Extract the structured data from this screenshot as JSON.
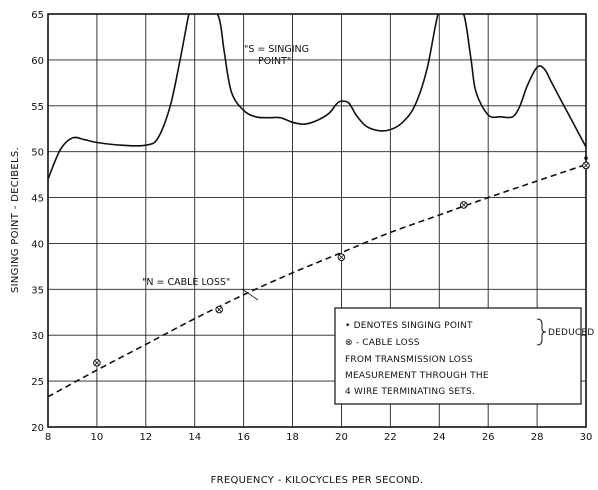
{
  "chart_data": {
    "type": "line",
    "title": "",
    "xlabel": "FREQUENCY - KILOCYCLES PER SECOND.",
    "ylabel": "SINGING POINT - DECIBELS.",
    "xlim": [
      8,
      30
    ],
    "ylim": [
      20,
      65
    ],
    "x_ticks": [
      8,
      10,
      12,
      14,
      16,
      18,
      20,
      22,
      24,
      26,
      28,
      30
    ],
    "y_ticks": [
      20,
      25,
      30,
      35,
      40,
      45,
      50,
      55,
      60,
      65
    ],
    "x_tick_labels": [
      "8",
      "10",
      "12",
      "14",
      "16",
      "18",
      "20",
      "22",
      "24",
      "26",
      "28",
      "30"
    ],
    "y_tick_labels": [
      "20",
      "25",
      "30",
      "35",
      "40",
      "45",
      "50",
      "55",
      "60",
      "65"
    ],
    "grid": true,
    "series": [
      {
        "name": "\"S = SINGING POINT\"",
        "style": "solid",
        "x": [
          8.0,
          8.5,
          9.0,
          9.5,
          10.0,
          11.0,
          12.0,
          12.5,
          13.0,
          13.4,
          13.8,
          14.0,
          14.5,
          15.0,
          15.2,
          15.5,
          16.0,
          16.5,
          17.0,
          17.5,
          18.0,
          18.5,
          19.0,
          19.5,
          19.8,
          20.0,
          20.3,
          20.6,
          21.0,
          21.5,
          22.0,
          22.5,
          23.0,
          23.5,
          24.0,
          24.5,
          25.0,
          25.3,
          25.5,
          26.0,
          26.5,
          27.0,
          27.3,
          27.6,
          28.0,
          28.3,
          28.6,
          29.0,
          29.5,
          30.0
        ],
        "y": [
          47.0,
          50.2,
          51.5,
          51.3,
          51.0,
          50.7,
          50.7,
          51.5,
          55.0,
          60.0,
          65.5,
          67.0,
          67.0,
          64.5,
          61.0,
          56.5,
          54.5,
          53.8,
          53.7,
          53.7,
          53.2,
          53.0,
          53.4,
          54.2,
          55.2,
          55.5,
          55.3,
          54.0,
          52.8,
          52.3,
          52.4,
          53.2,
          55.0,
          59.0,
          65.5,
          67.0,
          65.0,
          60.0,
          56.5,
          54.0,
          53.8,
          53.8,
          55.0,
          57.2,
          59.2,
          59.0,
          57.5,
          55.5,
          53.0,
          50.5
        ]
      },
      {
        "name": "\"N = CABLE LOSS\"",
        "style": "dashed",
        "x": [
          8,
          10,
          12,
          14,
          16,
          18,
          20,
          22,
          24,
          26,
          28,
          30
        ],
        "y": [
          23.3,
          26.2,
          29.0,
          31.8,
          34.4,
          36.8,
          39.0,
          41.2,
          43.1,
          45.0,
          46.8,
          48.6
        ]
      }
    ],
    "singing_points_deduced": {
      "x": [
        30
      ],
      "y": [
        49.3
      ]
    },
    "cable_loss_points_deduced": {
      "x": [
        10,
        15,
        20,
        25,
        30
      ],
      "y": [
        27.0,
        32.8,
        38.5,
        44.2,
        48.5
      ]
    },
    "annotations": {
      "singing_label": [
        "\"S = SINGING",
        "POINT\""
      ],
      "cable_label": "\"N = CABLE LOSS\"",
      "legend_line1_a": "• DENOTES SINGING POINT",
      "legend_line1_b": "DEDUCED",
      "legend_line2": "⊗   -    CABLE LOSS",
      "legend_line3": "FROM TRANSMISSION LOSS",
      "legend_line4": "MEASUREMENT THROUGH THE",
      "legend_line5": "4 WIRE TERMINATING SETS."
    }
  }
}
